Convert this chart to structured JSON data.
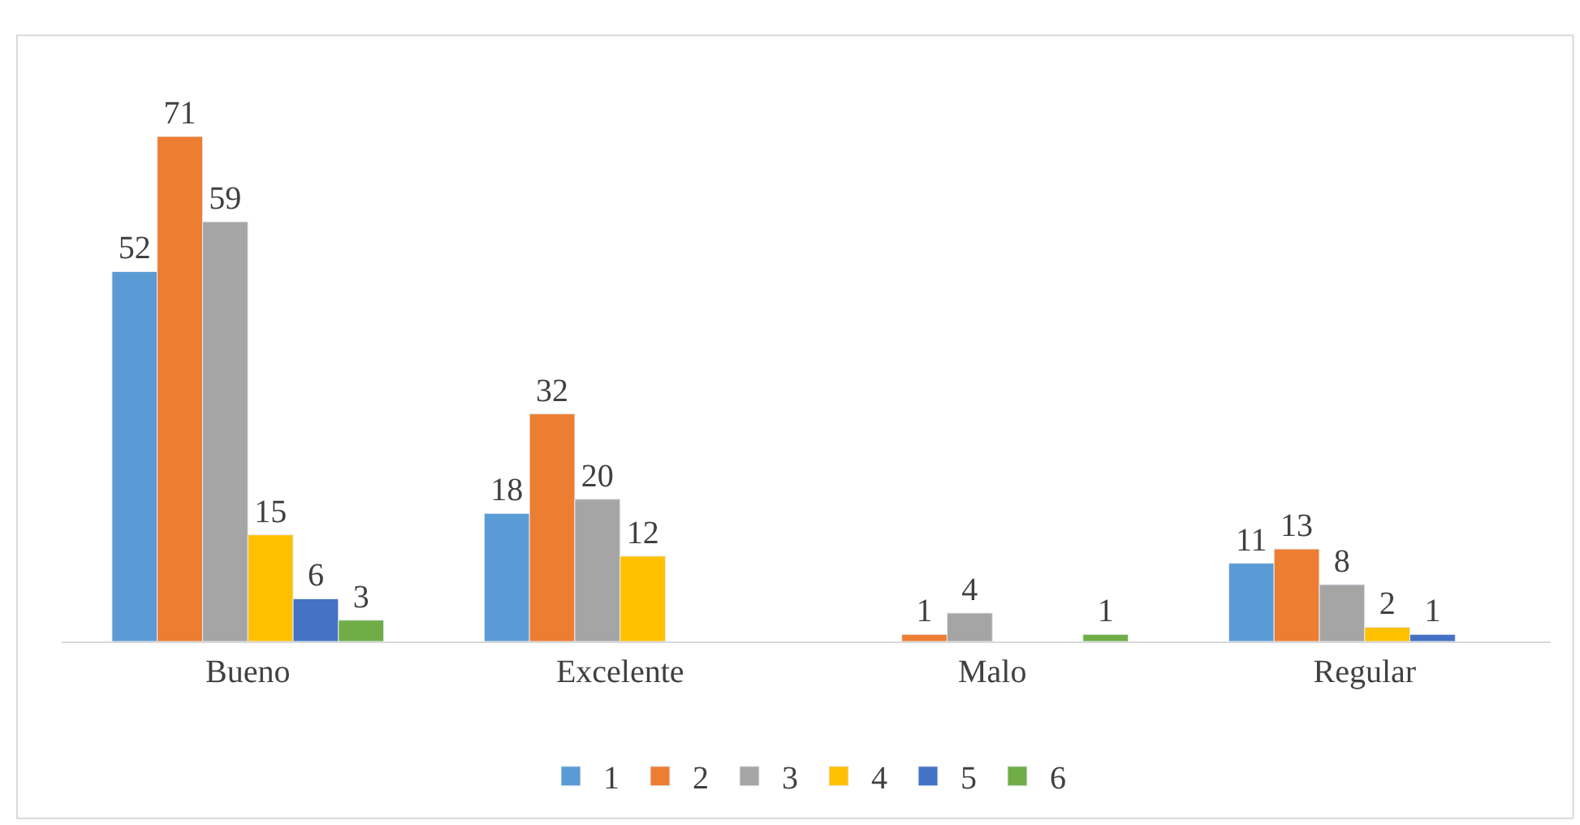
{
  "chart_data": {
    "type": "bar",
    "categories": [
      "Bueno",
      "Excelente",
      "Malo",
      "Regular"
    ],
    "series": [
      {
        "name": "1",
        "color": "#5b9bd5",
        "values": [
          52,
          18,
          null,
          11
        ]
      },
      {
        "name": "2",
        "color": "#ed7d31",
        "values": [
          71,
          32,
          1,
          13
        ]
      },
      {
        "name": "3",
        "color": "#a5a5a5",
        "values": [
          59,
          20,
          4,
          8
        ]
      },
      {
        "name": "4",
        "color": "#ffc000",
        "values": [
          15,
          12,
          null,
          2
        ]
      },
      {
        "name": "5",
        "color": "#4472c4",
        "values": [
          6,
          null,
          null,
          1
        ]
      },
      {
        "name": "6",
        "color": "#70ad47",
        "values": [
          3,
          null,
          1,
          null
        ]
      }
    ],
    "data_labels": true,
    "legend": "bottom",
    "tick_labels": "x"
  }
}
